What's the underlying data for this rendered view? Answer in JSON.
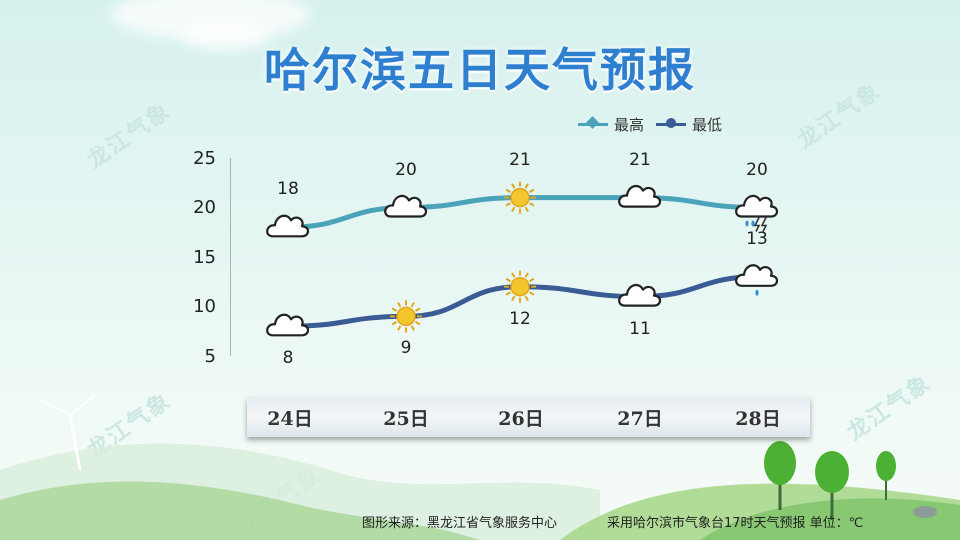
{
  "title": "哈尔滨五日天气预报",
  "watermark": "龙江气象",
  "legend": [
    {
      "label": "最高",
      "color": "#4aa3b8"
    },
    {
      "label": "最低",
      "color": "#3b5b94"
    }
  ],
  "chart_data": {
    "type": "line",
    "categories": [
      "24日",
      "25日",
      "26日",
      "27日",
      "28日"
    ],
    "ylim": [
      5,
      25
    ],
    "yticks": [
      "25",
      "20",
      "15",
      "10",
      "5"
    ],
    "grid": false,
    "legend_position": "top-right",
    "series": [
      {
        "name": "最高",
        "values": [
          18,
          20,
          21,
          21,
          20
        ],
        "color": "#4aa3b8",
        "icons": [
          "cloudy-icon",
          "cloudy-icon",
          "sunny-icon",
          "cloudy-icon",
          "thunderstorm-icon"
        ]
      },
      {
        "name": "最低",
        "values": [
          8,
          9,
          12,
          11,
          13
        ],
        "color": "#3b5b94",
        "icons": [
          "cloudy-icon",
          "sunny-icon",
          "sunny-icon",
          "cloudy-icon",
          "light-rain-icon"
        ]
      }
    ]
  },
  "footer": {
    "source": "图形来源：黑龙江省气象服务中心",
    "note": "采用哈尔滨市气象台17时天气预报 单位：℃"
  }
}
